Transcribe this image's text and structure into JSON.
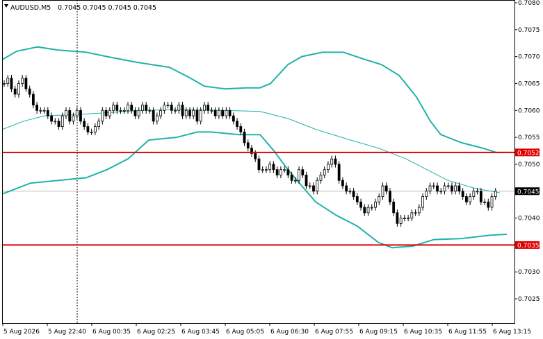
{
  "header": {
    "symbol_timeframe": "AUDUSD,M5",
    "ohlc": "0.7045 0.7045 0.7045 0.7045"
  },
  "colors": {
    "bollinger": "#20b2aa",
    "level_line": "#e00000",
    "candle": "#000000",
    "price_box_fill": "#000000",
    "price_box_text": "#ffffff"
  },
  "price_axis": {
    "labels": [
      "0.7080",
      "0.7075",
      "0.7070",
      "0.7065",
      "0.7060",
      "0.7055",
      "0.7050",
      "0.7040",
      "0.7030",
      "0.7025"
    ]
  },
  "time_axis": {
    "labels": [
      "5 Aug 2026",
      "5 Aug 22:40",
      "6 Aug 00:35",
      "6 Aug 02:25",
      "6 Aug 03:45",
      "6 Aug 05:05",
      "6 Aug 06:30",
      "6 Aug 07:55",
      "6 Aug 09:15",
      "6 Aug 10:35",
      "6 Aug 11:55",
      "6 Aug 13:15"
    ]
  },
  "markers": {
    "upper_level": "0.7052",
    "current_price": "0.7045",
    "lower_level": "0.7035"
  },
  "chart_data": {
    "type": "candlestick",
    "symbol": "AUDUSD",
    "timeframe": "M5",
    "ylim": [
      0.70205,
      0.708
    ],
    "horizontal_levels": [
      0.70522,
      0.7035
    ],
    "last_price": 0.7045,
    "close_series": [
      0.7065,
      0.7066,
      0.7064,
      0.7063,
      0.7065,
      0.7066,
      0.7064,
      0.7063,
      0.7061,
      0.706,
      0.706,
      0.706,
      0.7059,
      0.7058,
      0.7058,
      0.7057,
      0.7059,
      0.706,
      0.7058,
      0.7059,
      0.706,
      0.7058,
      0.7057,
      0.7056,
      0.7056,
      0.7057,
      0.7058,
      0.706,
      0.7059,
      0.706,
      0.7061,
      0.706,
      0.706,
      0.706,
      0.7061,
      0.706,
      0.7059,
      0.706,
      0.7061,
      0.706,
      0.706,
      0.7058,
      0.7059,
      0.706,
      0.7061,
      0.7061,
      0.706,
      0.706,
      0.7061,
      0.7059,
      0.706,
      0.7059,
      0.706,
      0.7058,
      0.706,
      0.7061,
      0.706,
      0.706,
      0.7059,
      0.706,
      0.7059,
      0.706,
      0.7059,
      0.7058,
      0.7057,
      0.7056,
      0.7054,
      0.7053,
      0.7052,
      0.7051,
      0.7049,
      0.7049,
      0.7049,
      0.705,
      0.7049,
      0.7048,
      0.7049,
      0.7049,
      0.7048,
      0.7047,
      0.7047,
      0.7049,
      0.7048,
      0.7046,
      0.7046,
      0.7045,
      0.7047,
      0.7048,
      0.7049,
      0.705,
      0.7051,
      0.705,
      0.7047,
      0.7046,
      0.7045,
      0.7045,
      0.7044,
      0.7043,
      0.7042,
      0.7041,
      0.7042,
      0.7042,
      0.7043,
      0.7044,
      0.7046,
      0.7045,
      0.7043,
      0.7041,
      0.7039,
      0.704,
      0.704,
      0.704,
      0.7041,
      0.7041,
      0.7042,
      0.7044,
      0.7045,
      0.7046,
      0.7046,
      0.7045,
      0.7045,
      0.7046,
      0.7046,
      0.7045,
      0.7046,
      0.7045,
      0.7044,
      0.7043,
      0.7044,
      0.7045,
      0.7045,
      0.7043,
      0.7043,
      0.7042,
      0.7044,
      0.7045
    ],
    "bollinger_upper": [
      [
        0,
        0.70695
      ],
      [
        20,
        0.7071
      ],
      [
        50,
        0.70718
      ],
      [
        80,
        0.70712
      ],
      [
        120,
        0.70708
      ],
      [
        150,
        0.707
      ],
      [
        190,
        0.7069
      ],
      [
        240,
        0.7068
      ],
      [
        270,
        0.7066
      ],
      [
        290,
        0.70645
      ],
      [
        320,
        0.7064
      ],
      [
        350,
        0.70642
      ],
      [
        370,
        0.70642
      ],
      [
        385,
        0.7065
      ],
      [
        410,
        0.70685
      ],
      [
        430,
        0.707
      ],
      [
        460,
        0.70708
      ],
      [
        490,
        0.70708
      ],
      [
        520,
        0.70695
      ],
      [
        545,
        0.70685
      ],
      [
        570,
        0.70665
      ],
      [
        595,
        0.70625
      ],
      [
        615,
        0.7058
      ],
      [
        630,
        0.70555
      ],
      [
        660,
        0.7054
      ],
      [
        690,
        0.7053
      ],
      [
        710,
        0.70522
      ],
      [
        730,
        0.70522
      ]
    ],
    "bollinger_middle": [
      [
        0,
        0.70565
      ],
      [
        30,
        0.7058
      ],
      [
        60,
        0.7059
      ],
      [
        100,
        0.70592
      ],
      [
        140,
        0.70595
      ],
      [
        200,
        0.706
      ],
      [
        260,
        0.70602
      ],
      [
        320,
        0.706
      ],
      [
        370,
        0.70598
      ],
      [
        410,
        0.70585
      ],
      [
        450,
        0.70565
      ],
      [
        500,
        0.70545
      ],
      [
        540,
        0.7053
      ],
      [
        580,
        0.7051
      ],
      [
        610,
        0.7049
      ],
      [
        640,
        0.7047
      ],
      [
        680,
        0.70455
      ],
      [
        715,
        0.70447
      ]
    ],
    "bollinger_lower": [
      [
        0,
        0.70445
      ],
      [
        40,
        0.70465
      ],
      [
        80,
        0.7047
      ],
      [
        120,
        0.70475
      ],
      [
        150,
        0.7049
      ],
      [
        180,
        0.7051
      ],
      [
        210,
        0.70545
      ],
      [
        250,
        0.7055
      ],
      [
        280,
        0.7056
      ],
      [
        300,
        0.7056
      ],
      [
        340,
        0.70555
      ],
      [
        370,
        0.70555
      ],
      [
        390,
        0.70525
      ],
      [
        410,
        0.7049
      ],
      [
        430,
        0.7046
      ],
      [
        450,
        0.7043
      ],
      [
        480,
        0.70405
      ],
      [
        510,
        0.70385
      ],
      [
        540,
        0.70355
      ],
      [
        560,
        0.70345
      ],
      [
        590,
        0.70348
      ],
      [
        620,
        0.7036
      ],
      [
        660,
        0.70362
      ],
      [
        700,
        0.70368
      ],
      [
        725,
        0.7037
      ]
    ]
  }
}
